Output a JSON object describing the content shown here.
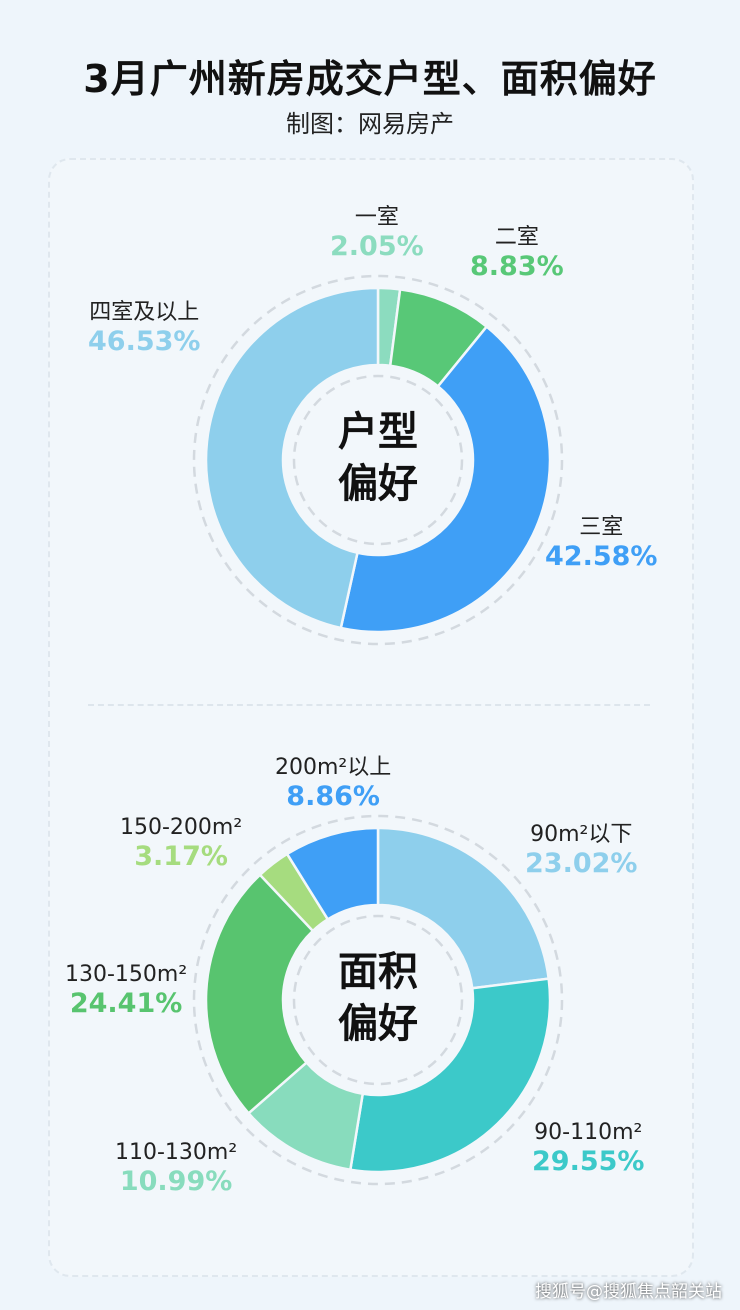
{
  "title": "3月广州新房成交户型、面积偏好",
  "subtitle": "制图：网易房产",
  "watermark": "搜狐号@搜狐焦点韶关站",
  "chart_data": [
    {
      "type": "pie",
      "title": "户型偏好",
      "center_label": [
        "户型",
        "偏好"
      ],
      "categories": [
        "一室",
        "二室",
        "三室",
        "四室及以上"
      ],
      "values": [
        2.05,
        8.83,
        42.58,
        46.53
      ],
      "labels": [
        "2.05%",
        "8.83%",
        "42.58%",
        "46.53%"
      ],
      "colors": [
        "#8cdcbf",
        "#58c877",
        "#3f9ff6",
        "#8ecfec"
      ]
    },
    {
      "type": "pie",
      "title": "面积偏好",
      "center_label": [
        "面积",
        "偏好"
      ],
      "categories": [
        "90m²以下",
        "90-110m²",
        "110-130m²",
        "130-150m²",
        "150-200m²",
        "200m²以上"
      ],
      "values": [
        23.02,
        29.55,
        10.99,
        24.41,
        3.17,
        8.86
      ],
      "labels": [
        "23.02%",
        "29.55%",
        "10.99%",
        "24.41%",
        "3.17%",
        "8.86%"
      ],
      "colors": [
        "#8ecfec",
        "#3cc9c9",
        "#88dcbd",
        "#58c46f",
        "#a6dc7f",
        "#3f9ff6"
      ]
    }
  ]
}
